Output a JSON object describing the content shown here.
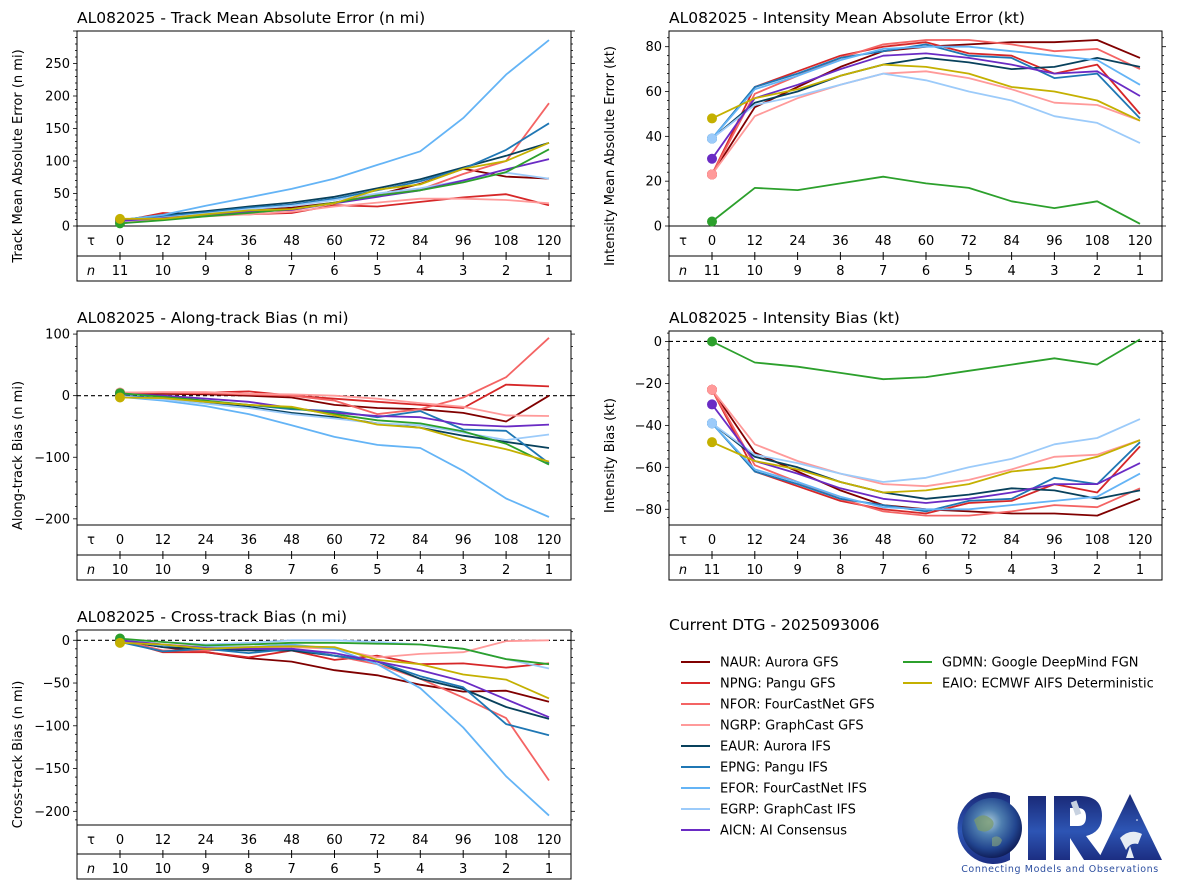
{
  "figure": {
    "dtg_label": "Current DTG - 2025093006",
    "logo": {
      "name": "CIRA",
      "tagline": "Connecting Models and Observations",
      "colors": {
        "dark": "#1c2a78",
        "mid": "#2f58b8",
        "light": "#5a86d8"
      }
    }
  },
  "models": [
    {
      "id": "NAUR",
      "label": "NAUR: Aurora GFS",
      "color": "#800000"
    },
    {
      "id": "NPNG",
      "label": "NPNG: Pangu GFS",
      "color": "#d62728"
    },
    {
      "id": "NFOR",
      "label": "NFOR: FourCastNet GFS",
      "color": "#f46464"
    },
    {
      "id": "NGRP",
      "label": "NGRP: GraphCast GFS",
      "color": "#ff9a9a"
    },
    {
      "id": "EAUR",
      "label": "EAUR: Aurora IFS",
      "color": "#08415c"
    },
    {
      "id": "EPNG",
      "label": "EPNG: Pangu IFS",
      "color": "#1f77b4"
    },
    {
      "id": "EFOR",
      "label": "EFOR: FourCastNet IFS",
      "color": "#64b4f6"
    },
    {
      "id": "EGRP",
      "label": "EGRP: GraphCast IFS",
      "color": "#9ccbfa"
    },
    {
      "id": "AICN",
      "label": "AICN: AI Consensus",
      "color": "#6a2bc4"
    },
    {
      "id": "GDMN",
      "label": "GDMN: Google DeepMind FGN",
      "color": "#2ca02c"
    },
    {
      "id": "EAIO",
      "label": "EAIO: ECMWF AIFS Deterministic",
      "color": "#c4b000"
    }
  ],
  "chart_data": [
    {
      "id": "track_mae",
      "type": "line",
      "title": "AL082025 - Track Mean Absolute Error (n mi)",
      "xlabel": "τ",
      "ylabel": "Track Mean Absolute Error (n mi)",
      "x": [
        0,
        12,
        24,
        36,
        48,
        60,
        72,
        84,
        96,
        108,
        120
      ],
      "n_label": "n",
      "n": [
        11,
        10,
        9,
        8,
        7,
        6,
        5,
        4,
        3,
        2,
        1
      ],
      "ylim": [
        0,
        300
      ],
      "yticks": [
        0,
        50,
        100,
        150,
        200,
        250
      ],
      "zero_line": false,
      "grid": false,
      "series": [
        {
          "model": "NAUR",
          "values": [
            8,
            15,
            20,
            25,
            28,
            36,
            48,
            65,
            88,
            76,
            73
          ]
        },
        {
          "model": "NPNG",
          "values": [
            7,
            20,
            18,
            18,
            20,
            32,
            30,
            37,
            44,
            49,
            32
          ]
        },
        {
          "model": "NFOR",
          "values": [
            8,
            14,
            18,
            22,
            25,
            36,
            48,
            56,
            80,
            100,
            189
          ]
        },
        {
          "model": "NGRP",
          "values": [
            6,
            11,
            15,
            18,
            22,
            30,
            36,
            42,
            42,
            40,
            35
          ]
        },
        {
          "model": "EAUR",
          "values": [
            9,
            17,
            23,
            30,
            36,
            45,
            58,
            72,
            90,
            108,
            128
          ]
        },
        {
          "model": "EPNG",
          "values": [
            8,
            15,
            21,
            28,
            33,
            42,
            55,
            69,
            88,
            117,
            158
          ]
        },
        {
          "model": "EFOR",
          "values": [
            9,
            17,
            31,
            44,
            57,
            73,
            94,
            115,
            166,
            233,
            286
          ]
        },
        {
          "model": "EGRP",
          "values": [
            7,
            13,
            19,
            26,
            31,
            40,
            50,
            58,
            70,
            82,
            73
          ]
        },
        {
          "model": "AICN",
          "values": [
            8,
            12,
            17,
            22,
            25,
            35,
            45,
            55,
            70,
            87,
            103
          ]
        },
        {
          "model": "GDMN",
          "values": [
            4,
            9,
            15,
            20,
            26,
            36,
            47,
            55,
            67,
            83,
            118
          ]
        },
        {
          "model": "EAIO",
          "values": [
            11,
            11,
            18,
            24,
            26,
            35,
            56,
            64,
            88,
            100,
            128
          ]
        }
      ]
    },
    {
      "id": "intensity_mae",
      "type": "line",
      "title": "AL082025 - Intensity Mean Absolute Error (kt)",
      "xlabel": "τ",
      "ylabel": "Intensity Mean Absolute Error (kt)",
      "x": [
        0,
        12,
        24,
        36,
        48,
        60,
        72,
        84,
        96,
        108,
        120
      ],
      "n_label": "n",
      "n": [
        11,
        10,
        9,
        8,
        7,
        6,
        5,
        4,
        3,
        2,
        1
      ],
      "ylim": [
        0,
        87
      ],
      "yticks": [
        0,
        20,
        40,
        60,
        80
      ],
      "zero_line": false,
      "grid": false,
      "series": [
        {
          "model": "NAUR",
          "values": [
            23,
            53,
            62,
            71,
            78,
            80,
            81,
            82,
            82,
            83,
            75
          ]
        },
        {
          "model": "NPNG",
          "values": [
            23,
            62,
            69,
            76,
            80,
            82,
            77,
            76,
            68,
            72,
            50
          ]
        },
        {
          "model": "NFOR",
          "values": [
            23,
            59,
            67,
            75,
            81,
            83,
            83,
            81,
            78,
            79,
            70
          ]
        },
        {
          "model": "NGRP",
          "values": [
            23,
            49,
            57,
            63,
            68,
            69,
            66,
            61,
            55,
            54,
            47
          ]
        },
        {
          "model": "EAUR",
          "values": [
            39,
            55,
            60,
            67,
            72,
            75,
            73,
            70,
            71,
            75,
            71
          ]
        },
        {
          "model": "EPNG",
          "values": [
            39,
            62,
            68,
            75,
            78,
            81,
            76,
            75,
            66,
            68,
            48
          ]
        },
        {
          "model": "EFOR",
          "values": [
            39,
            61,
            67,
            74,
            79,
            80,
            80,
            78,
            76,
            74,
            63
          ]
        },
        {
          "model": "EGRP",
          "values": [
            39,
            54,
            58,
            63,
            68,
            65,
            60,
            56,
            49,
            46,
            37
          ]
        },
        {
          "model": "AICN",
          "values": [
            30,
            57,
            63,
            70,
            76,
            77,
            75,
            72,
            68,
            69,
            58
          ]
        },
        {
          "model": "GDMN",
          "values": [
            2,
            17,
            16,
            19,
            22,
            19,
            17,
            11,
            8,
            11,
            1
          ]
        },
        {
          "model": "EAIO",
          "values": [
            48,
            57,
            61,
            67,
            72,
            71,
            68,
            62,
            60,
            56,
            47
          ]
        }
      ],
      "markers_at_t0": true
    },
    {
      "id": "along_track_bias",
      "type": "line",
      "title": "AL082025 - Along-track Bias (n mi)",
      "xlabel": "τ",
      "ylabel": "Along-track Bias (n mi)",
      "x": [
        0,
        12,
        24,
        36,
        48,
        60,
        72,
        84,
        96,
        108,
        120
      ],
      "n_label": "n",
      "n": [
        10,
        10,
        9,
        8,
        7,
        6,
        5,
        4,
        3,
        2,
        1
      ],
      "ylim": [
        -210,
        105
      ],
      "yticks": [
        -200,
        -100,
        0,
        100
      ],
      "zero_line": true,
      "grid": false,
      "series": [
        {
          "model": "NAUR",
          "values": [
            3,
            3,
            2,
            0,
            -3,
            -15,
            -20,
            -22,
            -28,
            -42,
            0
          ]
        },
        {
          "model": "NPNG",
          "values": [
            4,
            5,
            5,
            7,
            0,
            -5,
            -10,
            -15,
            -20,
            18,
            15
          ]
        },
        {
          "model": "NFOR",
          "values": [
            5,
            5,
            4,
            2,
            0,
            -8,
            -30,
            -22,
            -3,
            30,
            94
          ]
        },
        {
          "model": "NGRP",
          "values": [
            5,
            6,
            6,
            3,
            2,
            0,
            -5,
            -12,
            -18,
            -32,
            -33
          ]
        },
        {
          "model": "EAUR",
          "values": [
            0,
            -5,
            -12,
            -18,
            -28,
            -35,
            -45,
            -52,
            -65,
            -75,
            -85
          ]
        },
        {
          "model": "EPNG",
          "values": [
            0,
            -5,
            -10,
            -15,
            -22,
            -25,
            -35,
            -25,
            -55,
            -57,
            -110
          ]
        },
        {
          "model": "EFOR",
          "values": [
            -2,
            -8,
            -17,
            -30,
            -48,
            -67,
            -80,
            -85,
            -122,
            -167,
            -197
          ]
        },
        {
          "model": "EGRP",
          "values": [
            -1,
            -6,
            -13,
            -20,
            -30,
            -37,
            -45,
            -48,
            -60,
            -72,
            -63
          ]
        },
        {
          "model": "AICN",
          "values": [
            3,
            0,
            -5,
            -10,
            -20,
            -28,
            -33,
            -35,
            -47,
            -50,
            -47
          ]
        },
        {
          "model": "GDMN",
          "values": [
            4,
            -2,
            -8,
            -15,
            -20,
            -30,
            -40,
            -45,
            -58,
            -78,
            -112
          ]
        },
        {
          "model": "EAIO",
          "values": [
            -3,
            -4,
            -10,
            -15,
            -18,
            -32,
            -47,
            -52,
            -72,
            -87,
            -107
          ]
        }
      ],
      "markers_at_t0": true
    },
    {
      "id": "intensity_bias",
      "type": "line",
      "title": "AL082025 - Intensity Bias (kt)",
      "xlabel": "τ",
      "ylabel": "Intensity Bias (kt)",
      "x": [
        0,
        12,
        24,
        36,
        48,
        60,
        72,
        84,
        96,
        108,
        120
      ],
      "n_label": "n",
      "n": [
        11,
        10,
        9,
        8,
        7,
        6,
        5,
        4,
        3,
        2,
        1
      ],
      "ylim": [
        -87.5,
        5
      ],
      "yticks": [
        -80,
        -60,
        -40,
        -20,
        0
      ],
      "zero_line": true,
      "grid": false,
      "series": [
        {
          "model": "NAUR",
          "values": [
            -23,
            -53,
            -62,
            -71,
            -78,
            -80,
            -81,
            -82,
            -82,
            -83,
            -75
          ]
        },
        {
          "model": "NPNG",
          "values": [
            -23,
            -62,
            -69,
            -76,
            -80,
            -82,
            -77,
            -76,
            -68,
            -72,
            -50
          ]
        },
        {
          "model": "NFOR",
          "values": [
            -23,
            -59,
            -67,
            -75,
            -81,
            -83,
            -83,
            -81,
            -78,
            -79,
            -70
          ]
        },
        {
          "model": "NGRP",
          "values": [
            -23,
            -49,
            -57,
            -63,
            -68,
            -69,
            -66,
            -61,
            -55,
            -54,
            -47
          ]
        },
        {
          "model": "EAUR",
          "values": [
            -39,
            -55,
            -60,
            -67,
            -72,
            -75,
            -73,
            -70,
            -71,
            -75,
            -71
          ]
        },
        {
          "model": "EPNG",
          "values": [
            -39,
            -62,
            -68,
            -75,
            -78,
            -81,
            -76,
            -75,
            -65,
            -68,
            -48
          ]
        },
        {
          "model": "EFOR",
          "values": [
            -39,
            -61,
            -67,
            -74,
            -79,
            -80,
            -80,
            -78,
            -76,
            -74,
            -63
          ]
        },
        {
          "model": "EGRP",
          "values": [
            -39,
            -54,
            -58,
            -63,
            -67,
            -65,
            -60,
            -56,
            -49,
            -46,
            -37
          ]
        },
        {
          "model": "AICN",
          "values": [
            -30,
            -57,
            -63,
            -70,
            -75,
            -77,
            -75,
            -72,
            -68,
            -68,
            -58
          ]
        },
        {
          "model": "GDMN",
          "values": [
            0,
            -10,
            -12,
            -15,
            -18,
            -17,
            -14,
            -11,
            -8,
            -11,
            1
          ]
        },
        {
          "model": "EAIO",
          "values": [
            -48,
            -57,
            -61,
            -67,
            -72,
            -71,
            -68,
            -62,
            -60,
            -55,
            -47
          ]
        }
      ],
      "markers_at_t0": true
    },
    {
      "id": "cross_track_bias",
      "type": "line",
      "title": "AL082025 - Cross-track Bias (n mi)",
      "xlabel": "τ",
      "ylabel": "Cross-track Bias (n mi)",
      "x": [
        0,
        12,
        24,
        36,
        48,
        60,
        72,
        84,
        96,
        108,
        120
      ],
      "n_label": "n",
      "n": [
        10,
        10,
        9,
        8,
        7,
        6,
        5,
        4,
        3,
        2,
        1
      ],
      "ylim": [
        -216,
        12
      ],
      "yticks": [
        -200,
        -150,
        -100,
        -50,
        0
      ],
      "zero_line": true,
      "grid": false,
      "series": [
        {
          "model": "NAUR",
          "values": [
            0,
            -8,
            -14,
            -21,
            -25,
            -35,
            -41,
            -52,
            -60,
            -59,
            -72
          ]
        },
        {
          "model": "NPNG",
          "values": [
            0,
            -14,
            -14,
            -20,
            -12,
            -23,
            -18,
            -28,
            -27,
            -32,
            -27
          ]
        },
        {
          "model": "NFOR",
          "values": [
            0,
            -12,
            -12,
            -10,
            -10,
            -18,
            -28,
            -45,
            -67,
            -91,
            -164
          ]
        },
        {
          "model": "NGRP",
          "values": [
            0,
            -5,
            -8,
            -8,
            -8,
            -10,
            -20,
            -16,
            -14,
            -1,
            0
          ]
        },
        {
          "model": "EAUR",
          "values": [
            0,
            -8,
            -10,
            -12,
            -12,
            -18,
            -25,
            -45,
            -57,
            -78,
            -92
          ]
        },
        {
          "model": "EPNG",
          "values": [
            -2,
            -13,
            -10,
            -15,
            -10,
            -18,
            -25,
            -42,
            -55,
            -98,
            -111
          ]
        },
        {
          "model": "EFOR",
          "values": [
            -1,
            -6,
            -8,
            -8,
            -5,
            -10,
            -28,
            -56,
            -102,
            -159,
            -205
          ]
        },
        {
          "model": "EGRP",
          "values": [
            1,
            -2,
            -5,
            -3,
            0,
            0,
            -2,
            -5,
            -10,
            -22,
            -33
          ]
        },
        {
          "model": "AICN",
          "values": [
            0,
            -5,
            -9,
            -10,
            -10,
            -15,
            -25,
            -35,
            -48,
            -69,
            -90
          ]
        },
        {
          "model": "GDMN",
          "values": [
            2,
            -2,
            -6,
            -5,
            -3,
            -3,
            -4,
            -5,
            -10,
            -22,
            -28
          ]
        },
        {
          "model": "EAIO",
          "values": [
            -3,
            -5,
            -10,
            -8,
            -7,
            -8,
            -23,
            -28,
            -40,
            -46,
            -68
          ]
        }
      ],
      "markers_at_t0": true
    }
  ]
}
